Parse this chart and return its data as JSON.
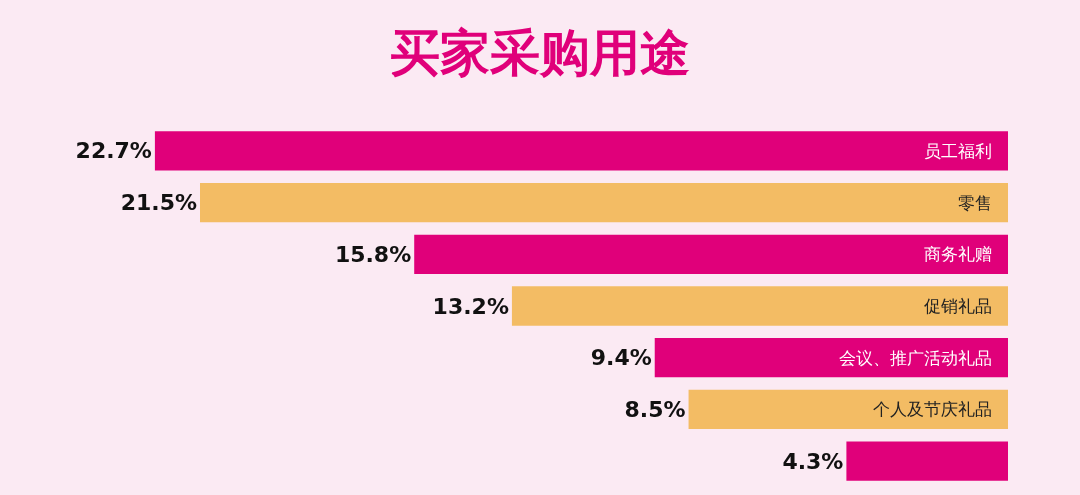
{
  "chart_data": {
    "type": "bar",
    "orientation": "horizontal",
    "title": "买家采购用途",
    "categories": [
      "员工福利",
      "零售",
      "商务礼赠",
      "促销礼品",
      "会议、推广活动礼品",
      "个人及节庆礼品",
      null
    ],
    "values": [
      22.7,
      21.5,
      15.8,
      13.2,
      9.4,
      8.5,
      4.3
    ],
    "value_labels": [
      "22.7%",
      "21.5%",
      "15.8%",
      "13.2%",
      "9.4%",
      "8.5%",
      "4.3%"
    ],
    "colors": [
      "#e0007a",
      "#f3bc64",
      "#e0007a",
      "#f3bc64",
      "#e0007a",
      "#f3bc64",
      "#e0007a"
    ]
  }
}
